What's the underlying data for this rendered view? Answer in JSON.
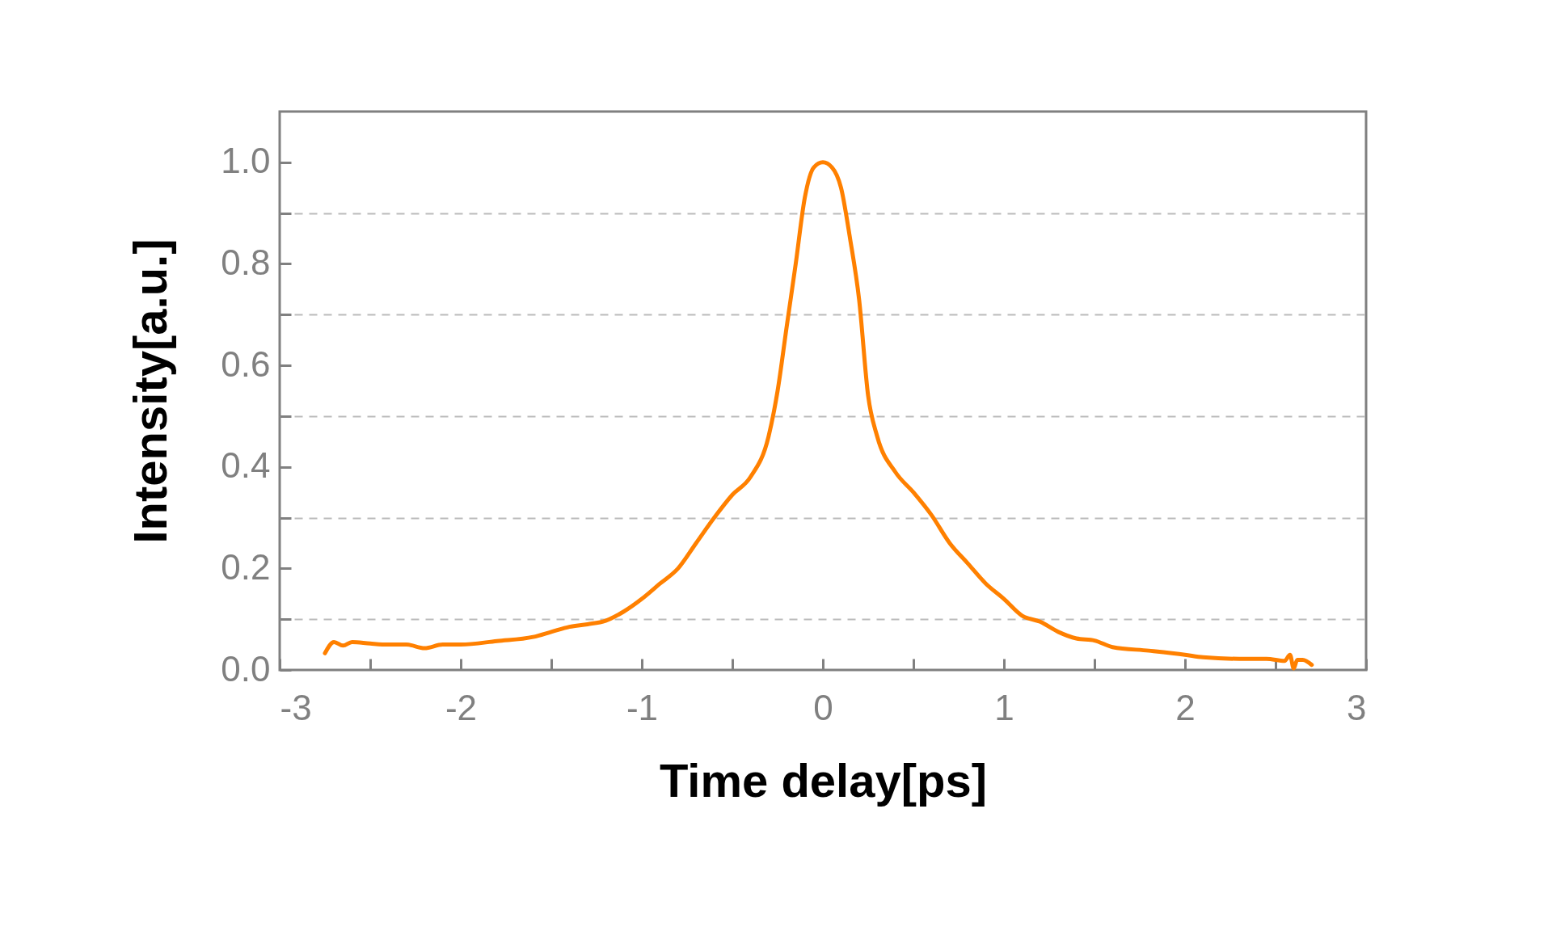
{
  "chart_data": {
    "type": "line",
    "xlabel": "Time delay[ps]",
    "ylabel": "Intensity[a.u.]",
    "x": [
      -2.75,
      -2.7,
      -2.65,
      -2.6,
      -2.5,
      -2.4,
      -2.3,
      -2.2,
      -2.1,
      -2.0,
      -1.8,
      -1.6,
      -1.5,
      -1.4,
      -1.3,
      -1.2,
      -1.1,
      -1.0,
      -0.9,
      -0.8,
      -0.7,
      -0.6,
      -0.5,
      -0.4,
      -0.3,
      -0.25,
      -0.2,
      -0.15,
      -0.1,
      -0.05,
      0,
      0.05,
      0.1,
      0.15,
      0.2,
      0.25,
      0.3,
      0.4,
      0.5,
      0.6,
      0.7,
      0.8,
      0.9,
      1.0,
      1.1,
      1.2,
      1.3,
      1.4,
      1.5,
      1.6,
      1.8,
      2.0,
      2.1,
      2.3,
      2.45,
      2.55,
      2.58,
      2.6,
      2.62,
      2.65,
      2.7
    ],
    "series": [
      {
        "color": "#ff8000",
        "values": [
          0.033,
          0.055,
          0.048,
          0.055,
          0.052,
          0.05,
          0.05,
          0.043,
          0.05,
          0.05,
          0.057,
          0.065,
          0.075,
          0.085,
          0.09,
          0.097,
          0.115,
          0.14,
          0.17,
          0.2,
          0.25,
          0.3,
          0.345,
          0.38,
          0.46,
          0.55,
          0.676,
          0.8,
          0.93,
          0.99,
          1.0,
          0.99,
          0.95,
          0.85,
          0.73,
          0.54,
          0.46,
          0.39,
          0.35,
          0.305,
          0.25,
          0.21,
          0.17,
          0.14,
          0.107,
          0.095,
          0.075,
          0.062,
          0.058,
          0.045,
          0.038,
          0.03,
          0.025,
          0.022,
          0.022,
          0.018,
          0.03,
          0.003,
          0.02,
          0.02,
          0.01
        ]
      }
    ],
    "xlim": [
      -3,
      3
    ],
    "xticks": [
      -3,
      {
        "value": -2.5,
        "label": null
      },
      -2,
      {
        "value": -1.5,
        "label": null
      },
      -1,
      {
        "value": -0.5,
        "label": null
      },
      0,
      {
        "value": 0.5,
        "label": null
      },
      1,
      {
        "value": 1.5,
        "label": null
      },
      2,
      {
        "value": 2.5,
        "label": null
      },
      3
    ],
    "ylim": [
      0,
      1.1
    ],
    "yticks": [
      {
        "value": 0,
        "label": "0.0"
      },
      {
        "value": 0.1,
        "label": null
      },
      0.2,
      {
        "value": 0.3,
        "label": null
      },
      0.4,
      {
        "value": 0.5,
        "label": null
      },
      0.6,
      {
        "value": 0.7,
        "label": null
      },
      0.8,
      {
        "value": 0.9,
        "label": null
      },
      {
        "value": 1,
        "label": "1.0"
      }
    ],
    "grid": "y",
    "line_style": "solid"
  }
}
